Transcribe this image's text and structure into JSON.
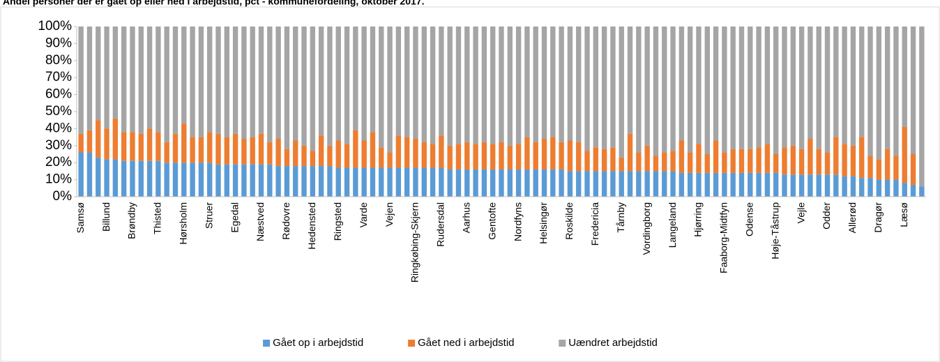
{
  "chart_data": {
    "type": "stacked-bar",
    "title": "Andel personer der er gået op eller ned i arbejdstid, pct - kommunefordeling, oktober 2017.",
    "categories": [
      "Samsø",
      null,
      null,
      "Billund",
      null,
      null,
      "Brøndby",
      null,
      null,
      "Thisted",
      null,
      null,
      "Hørsholm",
      null,
      null,
      "Struer",
      null,
      null,
      "Egedal",
      null,
      null,
      "Næstved",
      null,
      null,
      "Rødovre",
      null,
      null,
      "Hedensted",
      null,
      null,
      "Ringsted",
      null,
      null,
      "Varde",
      null,
      null,
      "Vejen",
      null,
      null,
      "Ringkøbing-Skjern",
      null,
      null,
      "Rudersdal",
      null,
      null,
      "Aarhus",
      null,
      null,
      "Gentofte",
      null,
      null,
      "Nordfyns",
      null,
      null,
      "Helsingør",
      null,
      null,
      "Roskilde",
      null,
      null,
      "Fredericia",
      null,
      null,
      "Tårnby",
      null,
      null,
      "Vordingborg",
      null,
      null,
      "Langeland",
      null,
      null,
      "Hjørring",
      null,
      null,
      "Faaborg-Midtfyn",
      null,
      null,
      "Odense",
      null,
      null,
      "Høje-Tåstrup",
      null,
      null,
      "Vejle",
      null,
      null,
      "Odder",
      null,
      null,
      "Allerød",
      null,
      null,
      "Dragør",
      null,
      null,
      "Læsø",
      null,
      null
    ],
    "series": [
      {
        "name": "Gået op i arbejdstid",
        "color": "#5b9bd5",
        "values": [
          26,
          26,
          23,
          22,
          22,
          21,
          21,
          21,
          21,
          21,
          20,
          20,
          20,
          20,
          20,
          20,
          19,
          19,
          19,
          19,
          19,
          19,
          19,
          18,
          18,
          18,
          18,
          18,
          18,
          18,
          17,
          17,
          17,
          17,
          17,
          17,
          17,
          17,
          17,
          17,
          17,
          17,
          17,
          16,
          16,
          16,
          16,
          16,
          16,
          16,
          16,
          16,
          16,
          16,
          16,
          16,
          16,
          15,
          15,
          15,
          15,
          15,
          15,
          15,
          15,
          15,
          15,
          15,
          15,
          15,
          14,
          14,
          14,
          14,
          14,
          14,
          14,
          14,
          14,
          14,
          14,
          14,
          13,
          13,
          13,
          13,
          13,
          13,
          13,
          12,
          12,
          11,
          11,
          10,
          10,
          10,
          8,
          7,
          6
        ]
      },
      {
        "name": "Gået ned i arbejdstid",
        "color": "#ed7d31",
        "values": [
          11,
          13,
          22,
          18,
          24,
          17,
          17,
          16,
          19,
          17,
          12,
          17,
          23,
          15,
          15,
          18,
          18,
          16,
          18,
          15,
          16,
          18,
          13,
          16,
          10,
          15,
          12,
          9,
          18,
          12,
          16,
          14,
          22,
          16,
          21,
          12,
          9,
          19,
          18,
          17,
          15,
          14,
          19,
          14,
          15,
          16,
          15,
          16,
          15,
          16,
          14,
          15,
          19,
          16,
          18,
          19,
          16,
          18,
          17,
          12,
          14,
          13,
          14,
          8,
          22,
          11,
          15,
          9,
          11,
          12,
          19,
          12,
          17,
          11,
          19,
          12,
          14,
          14,
          14,
          15,
          17,
          11,
          16,
          17,
          15,
          21,
          15,
          13,
          22,
          19,
          18,
          24,
          13,
          12,
          18,
          14,
          33,
          18,
          0
        ]
      },
      {
        "name": "Uændret arbejdstid",
        "color": "#a5a5a5",
        "values": [
          63,
          61,
          55,
          60,
          54,
          62,
          62,
          63,
          60,
          62,
          68,
          63,
          57,
          65,
          65,
          62,
          63,
          65,
          63,
          66,
          65,
          63,
          68,
          66,
          72,
          67,
          70,
          73,
          64,
          70,
          67,
          69,
          61,
          67,
          62,
          71,
          74,
          64,
          65,
          66,
          68,
          69,
          64,
          70,
          69,
          68,
          69,
          68,
          69,
          68,
          70,
          69,
          65,
          68,
          66,
          65,
          68,
          67,
          68,
          73,
          71,
          72,
          71,
          77,
          63,
          74,
          70,
          76,
          74,
          73,
          67,
          74,
          69,
          75,
          67,
          74,
          72,
          72,
          72,
          71,
          69,
          75,
          71,
          70,
          72,
          66,
          72,
          74,
          65,
          69,
          70,
          65,
          76,
          78,
          72,
          76,
          59,
          75,
          94
        ]
      }
    ],
    "ylim": [
      0,
      100
    ],
    "yticks": [
      {
        "value": 0,
        "label": "0%"
      },
      {
        "value": 10,
        "label": "10%"
      },
      {
        "value": 20,
        "label": "20%"
      },
      {
        "value": 30,
        "label": "30%"
      },
      {
        "value": 40,
        "label": "40%"
      },
      {
        "value": 50,
        "label": "50%"
      },
      {
        "value": 60,
        "label": "60%"
      },
      {
        "value": 70,
        "label": "70%"
      },
      {
        "value": 80,
        "label": "80%"
      },
      {
        "value": 90,
        "label": "90%"
      },
      {
        "value": 100,
        "label": "100%"
      }
    ],
    "legend": "bottom"
  }
}
